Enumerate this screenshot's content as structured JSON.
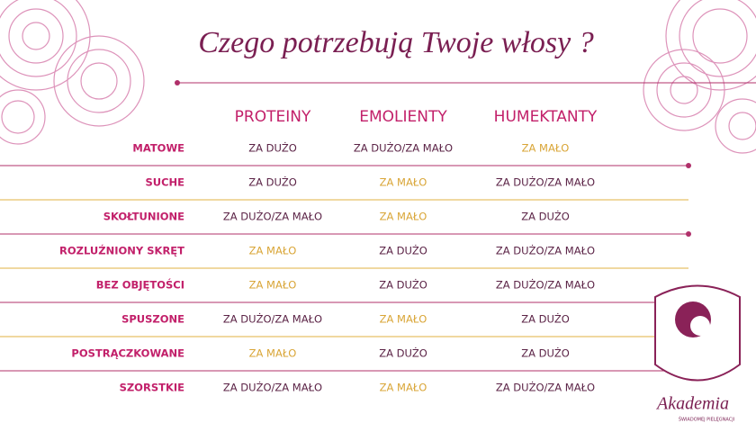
{
  "header": {
    "title": "Czego potrzebują Twoje włosy ?"
  },
  "table": {
    "columns": [
      "PROTEINY",
      "EMOLIENTY",
      "HUMEKTANTY"
    ],
    "rows": [
      {
        "label": "MATOWE",
        "cells": [
          {
            "text": "ZA DUŻO",
            "color": "#5b2346"
          },
          {
            "text": "ZA DUŻO/ZA MAŁO",
            "color": "#5b2346"
          },
          {
            "text": "ZA MAŁO",
            "color": "#d9a536"
          }
        ]
      },
      {
        "label": "SUCHE",
        "cells": [
          {
            "text": "ZA DUŻO",
            "color": "#5b2346"
          },
          {
            "text": "ZA MAŁO",
            "color": "#d9a536"
          },
          {
            "text": "ZA DUŻO/ZA MAŁO",
            "color": "#5b2346"
          }
        ]
      },
      {
        "label": "SKOŁTUNIONE",
        "cells": [
          {
            "text": "ZA DUŻO/ZA MAŁO",
            "color": "#5b2346"
          },
          {
            "text": "ZA MAŁO",
            "color": "#d9a536"
          },
          {
            "text": "ZA DUŻO",
            "color": "#5b2346"
          }
        ]
      },
      {
        "label": "ROZLUŹNIONY SKRĘT",
        "cells": [
          {
            "text": "ZA MAŁO",
            "color": "#d9a536"
          },
          {
            "text": "ZA DUŻO",
            "color": "#5b2346"
          },
          {
            "text": "ZA DUŻO/ZA MAŁO",
            "color": "#5b2346"
          }
        ]
      },
      {
        "label": "BEZ OBJĘTOŚCI",
        "cells": [
          {
            "text": "ZA MAŁO",
            "color": "#d9a536"
          },
          {
            "text": "ZA DUŻO",
            "color": "#5b2346"
          },
          {
            "text": "ZA DUŻO/ZA MAŁO",
            "color": "#5b2346"
          }
        ]
      },
      {
        "label": "SPUSZONE",
        "cells": [
          {
            "text": "ZA DUŻO/ZA MAŁO",
            "color": "#5b2346"
          },
          {
            "text": "ZA MAŁO",
            "color": "#d9a536"
          },
          {
            "text": "ZA DUŻO",
            "color": "#5b2346"
          }
        ]
      },
      {
        "label": "POSTRĄCZKOWANE",
        "cells": [
          {
            "text": "ZA MAŁO",
            "color": "#d9a536"
          },
          {
            "text": "ZA DUŻO",
            "color": "#5b2346"
          },
          {
            "text": "ZA DUŻO",
            "color": "#5b2346"
          }
        ]
      },
      {
        "label": "SZORSTKIE",
        "cells": [
          {
            "text": "ZA DUŻO/ZA MAŁO",
            "color": "#5b2346"
          },
          {
            "text": "ZA MAŁO",
            "color": "#d9a536"
          },
          {
            "text": "ZA DUŻO/ZA MAŁO",
            "color": "#5b2346"
          }
        ]
      }
    ]
  },
  "logo": {
    "name": "Akademia",
    "tagline": "ŚWIADOMEJ PIELĘGNACJI"
  }
}
